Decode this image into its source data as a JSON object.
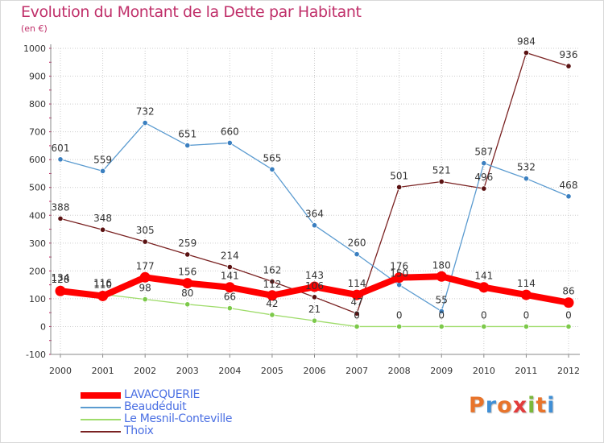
{
  "title": "Evolution du Montant de la Dette par Habitant",
  "unit": "(en €)",
  "logo": {
    "text": "Proxiti",
    "letters": [
      "P",
      "r",
      "o",
      "x",
      "i",
      "t",
      "i"
    ],
    "colors": [
      "#e8742b",
      "#3f8fd6",
      "#e8742b",
      "#e23c3c",
      "#7ab83a",
      "#e8742b",
      "#3f8fd6"
    ]
  },
  "chart_data": {
    "type": "line",
    "title": "Evolution du Montant de la Dette par Habitant",
    "ylabel": "(en €)",
    "xlabel": "",
    "ylim": [
      -100,
      1000
    ],
    "yticks": [
      -100,
      0,
      100,
      200,
      300,
      400,
      500,
      600,
      700,
      800,
      900,
      1000
    ],
    "grid": true,
    "legend": "bottom-left",
    "categories": [
      "2000",
      "2001",
      "2002",
      "2003",
      "2004",
      "2005",
      "2006",
      "2007",
      "2008",
      "2009",
      "2010",
      "2011",
      "2012"
    ],
    "series": [
      {
        "name": "Thoix",
        "color": "#7a2222",
        "marker": "#5a1212",
        "width": 1.3,
        "radius": 3.2,
        "values": [
          388,
          348,
          305,
          259,
          214,
          162,
          106,
          47,
          501,
          521,
          496,
          984,
          936
        ],
        "labels": [
          "388",
          "348",
          "305",
          "259",
          "214",
          "162",
          "106",
          "47",
          "501",
          "521",
          "496",
          "984",
          "936"
        ]
      },
      {
        "name": "Beaudéduit",
        "color": "#5b9bd0",
        "marker": "#3a7fc0",
        "width": 1.3,
        "radius": 3.2,
        "values": [
          601,
          559,
          732,
          651,
          660,
          565,
          364,
          260,
          150,
          55,
          587,
          532,
          468
        ],
        "labels": [
          "601",
          "559",
          "732",
          "651",
          "660",
          "565",
          "364",
          "260",
          "150",
          "55",
          "587",
          "532",
          "468"
        ]
      },
      {
        "name": "Le Mesnil-Conteville",
        "color": "#9fdc6b",
        "marker": "#7cc94a",
        "width": 1.3,
        "radius": 3.2,
        "values": [
          134,
          116,
          98,
          80,
          66,
          42,
          21,
          0,
          0,
          0,
          0,
          0,
          0
        ],
        "labels": [
          "134",
          "116",
          "98",
          "80",
          "66",
          "42",
          "21",
          "0",
          "0",
          "0",
          "0",
          "0",
          "0"
        ]
      },
      {
        "name": "LAVACQUERIE",
        "color": "#ff0000",
        "marker": "#ff0000",
        "width": 8,
        "radius": 6.5,
        "values": [
          128,
          110,
          177,
          156,
          141,
          112,
          143,
          114,
          176,
          180,
          141,
          114,
          86
        ],
        "labels": [
          "128",
          "110",
          "177",
          "156",
          "141",
          "112",
          "143",
          "114",
          "176",
          "180",
          "141",
          "114",
          "86"
        ]
      }
    ]
  }
}
